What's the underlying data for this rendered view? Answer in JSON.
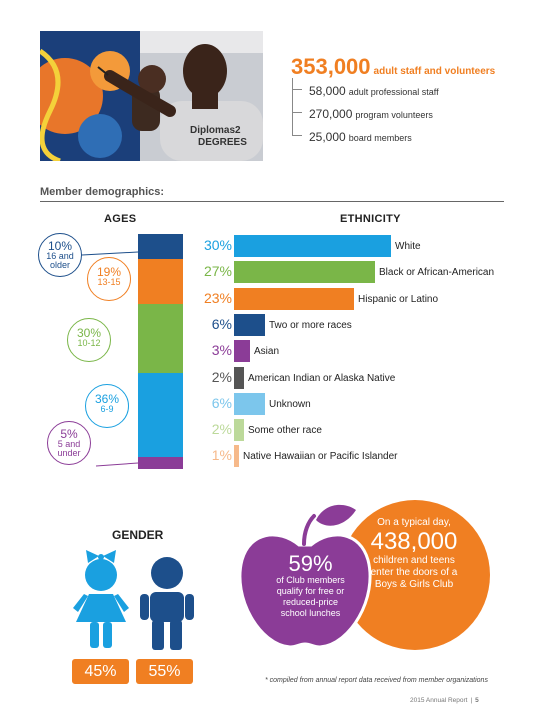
{
  "staff": {
    "total": {
      "value": "353,000",
      "label": "adult staff and volunteers"
    },
    "breakdown": [
      {
        "value": "58,000",
        "label": "adult professional staff"
      },
      {
        "value": "270,000",
        "label": "program volunteers"
      },
      {
        "value": "25,000",
        "label": "board members"
      }
    ]
  },
  "photo": {
    "shirt_text_1": "Diplomas2",
    "shirt_text_2": "DEGREES"
  },
  "demographics": {
    "heading": "Member demographics:"
  },
  "ages": {
    "title": "AGES",
    "groups": [
      {
        "percent": "10%",
        "range": "16 and older",
        "range_line1": "16 and",
        "range_line2": "older",
        "value": 10,
        "color": "#1d4f8b"
      },
      {
        "percent": "19%",
        "range": "13-15",
        "value": 19,
        "color": "#f07f22"
      },
      {
        "percent": "30%",
        "range": "10-12",
        "value": 30,
        "color": "#7ab648"
      },
      {
        "percent": "36%",
        "range": "6-9",
        "value": 36,
        "color": "#1aa0e0"
      },
      {
        "percent": "5%",
        "range": "5 and under",
        "range_line1": "5 and",
        "range_line2": "under",
        "value": 5,
        "color": "#8b3c97"
      }
    ]
  },
  "ethnicity": {
    "title": "ETHNICITY",
    "rows": [
      {
        "percent": "30%",
        "label": "White",
        "value": 30,
        "color": "#1aa0e0"
      },
      {
        "percent": "27%",
        "label": "Black or African-American",
        "value": 27,
        "color": "#7ab648"
      },
      {
        "percent": "23%",
        "label": "Hispanic or Latino",
        "value": 23,
        "color": "#f07f22"
      },
      {
        "percent": "6%",
        "label": "Two or more races",
        "value": 6,
        "color": "#1d4f8b"
      },
      {
        "percent": "3%",
        "label": "Asian",
        "value": 3,
        "color": "#8b3c97"
      },
      {
        "percent": "2%",
        "label": "American Indian or Alaska Native",
        "value": 2,
        "color": "#555555"
      },
      {
        "percent": "6%",
        "label": "Unknown",
        "value": 6,
        "color": "#7cc6ec"
      },
      {
        "percent": "2%",
        "label": "Some other race",
        "value": 2,
        "color": "#bcd99a"
      },
      {
        "percent": "1%",
        "label": "Native Hawaiian or Pacific Islander",
        "value": 1,
        "color": "#f6b98a"
      }
    ]
  },
  "gender": {
    "title": "GENDER",
    "female": {
      "percent": "45%",
      "color": "#1aa0e0"
    },
    "male": {
      "percent": "55%",
      "color": "#1d4f8b"
    }
  },
  "lunch": {
    "percent": "59%",
    "lines": [
      "of Club members",
      "qualify for free or",
      "reduced-price",
      "school lunches"
    ],
    "color": "#8b3c97"
  },
  "daily": {
    "pre": "On a typical day,",
    "value": "438,000",
    "lines": [
      "children and teens",
      "enter the doors of a",
      "Boys & Girls Club"
    ],
    "color": "#f07f22"
  },
  "footnote": "* compiled from annual report data received from member organizations",
  "footer": {
    "report": "2015 Annual Report",
    "separator": "|",
    "page": "5"
  },
  "colors": {
    "accent_orange": "#f07f22",
    "navy": "#1d4f8b",
    "blue": "#1aa0e0",
    "green": "#7ab648",
    "purple": "#8b3c97"
  }
}
